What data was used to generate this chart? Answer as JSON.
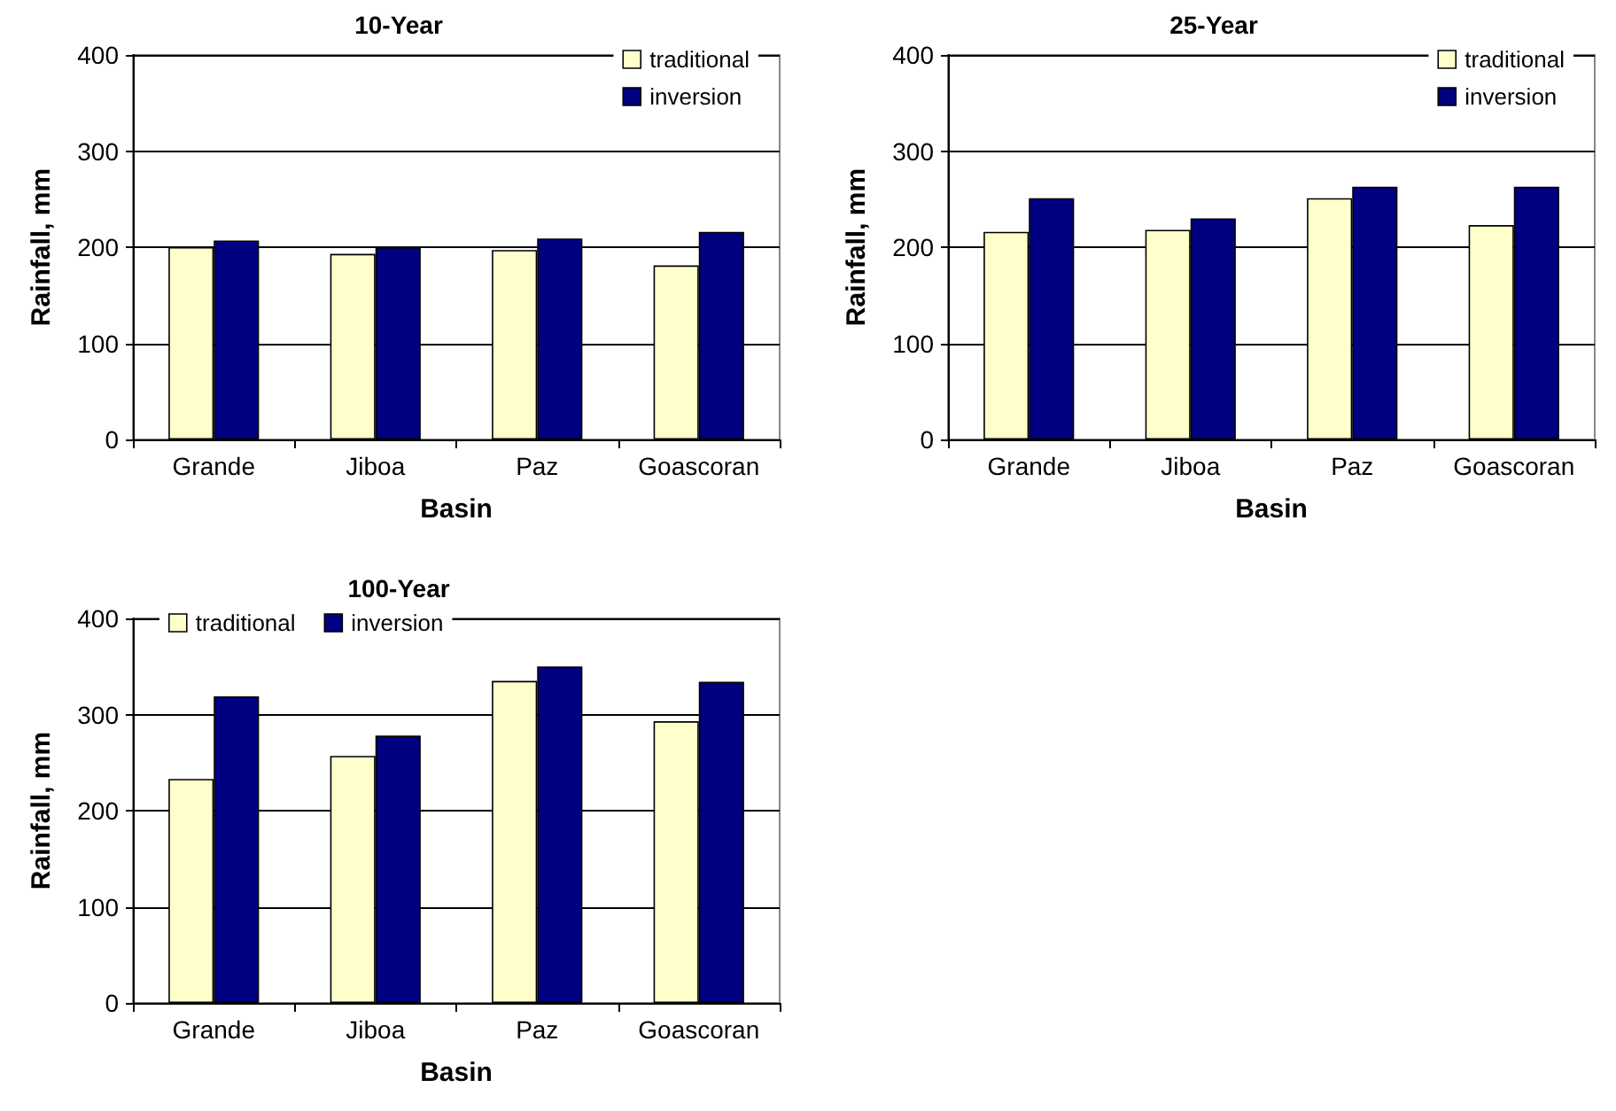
{
  "chart_data": [
    {
      "type": "bar",
      "title": "10-Year",
      "xlabel": "Basin",
      "ylabel": "Rainfall, mm",
      "categories": [
        "Grande",
        "Jiboa",
        "Paz",
        "Goascoran"
      ],
      "series": [
        {
          "name": "traditional",
          "color": "#ffffcc",
          "values": [
            200,
            193,
            197,
            181
          ]
        },
        {
          "name": "inversion",
          "color": "#000080",
          "values": [
            207,
            200,
            209,
            216
          ]
        }
      ],
      "ylim": [
        0,
        400
      ],
      "yticks": [
        0,
        100,
        200,
        300,
        400
      ],
      "grid": "y",
      "legend": "top right"
    },
    {
      "type": "bar",
      "title": "25-Year",
      "xlabel": "Basin",
      "ylabel": "Rainfall, mm",
      "categories": [
        "Grande",
        "Jiboa",
        "Paz",
        "Goascoran"
      ],
      "series": [
        {
          "name": "traditional",
          "color": "#ffffcc",
          "values": [
            216,
            218,
            251,
            223
          ]
        },
        {
          "name": "inversion",
          "color": "#000080",
          "values": [
            251,
            230,
            263,
            263
          ]
        }
      ],
      "ylim": [
        0,
        400
      ],
      "yticks": [
        0,
        100,
        200,
        300,
        400
      ],
      "grid": "y",
      "legend": "top right"
    },
    {
      "type": "bar",
      "title": "100-Year",
      "xlabel": "Basin",
      "ylabel": "Rainfall, mm",
      "categories": [
        "Grande",
        "Jiboa",
        "Paz",
        "Goascoran"
      ],
      "series": [
        {
          "name": "traditional",
          "color": "#ffffcc",
          "values": [
            233,
            257,
            335,
            293
          ]
        },
        {
          "name": "inversion",
          "color": "#000080",
          "values": [
            319,
            278,
            350,
            334
          ]
        }
      ],
      "ylim": [
        0,
        400
      ],
      "yticks": [
        0,
        100,
        200,
        300,
        400
      ],
      "grid": "y",
      "legend": "top left"
    }
  ]
}
